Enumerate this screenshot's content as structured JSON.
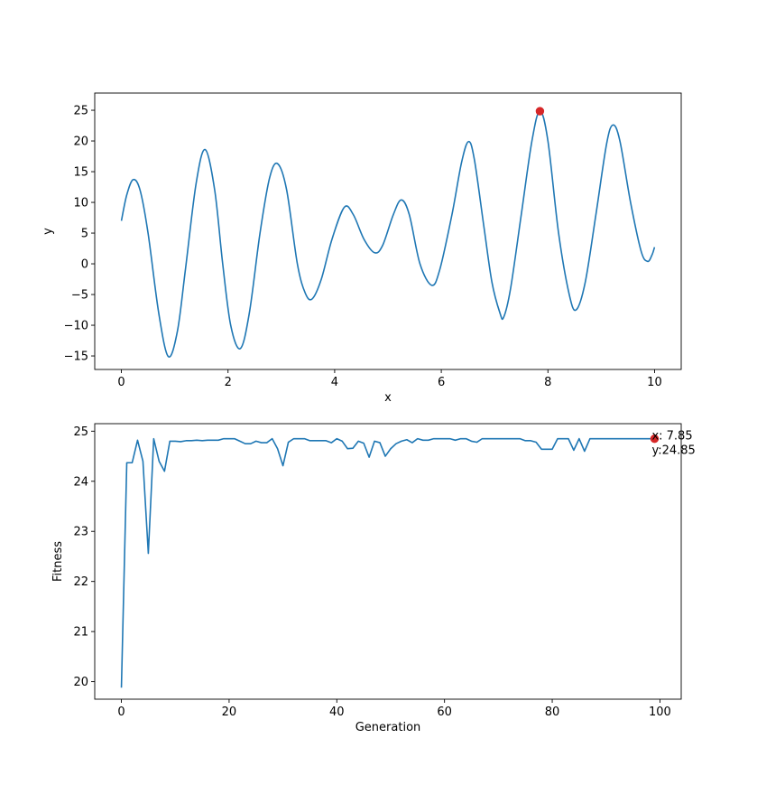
{
  "chart_data": [
    {
      "type": "line",
      "xlabel": "x",
      "ylabel": "y",
      "xlim": [
        -0.5,
        10.5
      ],
      "ylim": [
        -17.2,
        27.8
      ],
      "xticks": [
        0,
        2,
        4,
        6,
        8,
        10
      ],
      "yticks": [
        -15,
        -10,
        -5,
        0,
        5,
        10,
        15,
        20,
        25
      ],
      "tick_labels_x": [
        "0",
        "2",
        "4",
        "6",
        "8",
        "10"
      ],
      "tick_labels_y": [
        "−15",
        "−10",
        "−5",
        "0",
        "5",
        "10",
        "15",
        "20",
        "25"
      ],
      "series": [
        {
          "color": "#1f77b4",
          "points": [
            [
              0,
              7
            ],
            [
              0.1,
              11.2
            ],
            [
              0.22,
              13.7
            ],
            [
              0.35,
              12.0
            ],
            [
              0.5,
              5.0
            ],
            [
              0.7,
              -8.0
            ],
            [
              0.88,
              -15.1
            ],
            [
              1.05,
              -11.0
            ],
            [
              1.2,
              -1.0
            ],
            [
              1.4,
              13.0
            ],
            [
              1.57,
              18.6
            ],
            [
              1.75,
              12.0
            ],
            [
              1.9,
              0.0
            ],
            [
              2.05,
              -10.0
            ],
            [
              2.23,
              -13.8
            ],
            [
              2.4,
              -8.0
            ],
            [
              2.6,
              5.0
            ],
            [
              2.78,
              14.0
            ],
            [
              2.93,
              16.3
            ],
            [
              3.1,
              12.0
            ],
            [
              3.3,
              0.0
            ],
            [
              3.45,
              -4.8
            ],
            [
              3.58,
              -5.7
            ],
            [
              3.75,
              -2.5
            ],
            [
              3.95,
              4.0
            ],
            [
              4.18,
              9.2
            ],
            [
              4.35,
              8.0
            ],
            [
              4.55,
              4.0
            ],
            [
              4.75,
              1.8
            ],
            [
              4.9,
              3.0
            ],
            [
              5.1,
              8.0
            ],
            [
              5.25,
              10.4
            ],
            [
              5.4,
              8.0
            ],
            [
              5.6,
              0.0
            ],
            [
              5.82,
              -3.5
            ],
            [
              5.97,
              -1.0
            ],
            [
              6.2,
              8.0
            ],
            [
              6.38,
              16.5
            ],
            [
              6.51,
              19.9
            ],
            [
              6.62,
              17.0
            ],
            [
              6.8,
              6.0
            ],
            [
              6.95,
              -3.0
            ],
            [
              7.1,
              -8.0
            ],
            [
              7.17,
              -8.7
            ],
            [
              7.3,
              -4.0
            ],
            [
              7.5,
              8.0
            ],
            [
              7.7,
              20.0
            ],
            [
              7.85,
              24.85
            ],
            [
              8.0,
              20.0
            ],
            [
              8.2,
              5.0
            ],
            [
              8.4,
              -5.0
            ],
            [
              8.53,
              -7.5
            ],
            [
              8.7,
              -3.0
            ],
            [
              8.9,
              8.0
            ],
            [
              9.1,
              19.5
            ],
            [
              9.22,
              22.6
            ],
            [
              9.35,
              20.0
            ],
            [
              9.55,
              10.0
            ],
            [
              9.75,
              2.0
            ],
            [
              9.87,
              0.4
            ],
            [
              9.95,
              1.4
            ],
            [
              10.0,
              2.7
            ]
          ]
        }
      ],
      "highlight": {
        "x": 7.85,
        "y": 24.85,
        "color": "#d62728"
      },
      "grid": false
    },
    {
      "type": "line",
      "xlabel": "Generation",
      "ylabel": "Fitness",
      "xlim": [
        -4.95,
        103.95
      ],
      "ylim": [
        19.65,
        25.15
      ],
      "xticks": [
        0,
        20,
        40,
        60,
        80,
        100
      ],
      "yticks": [
        20,
        21,
        22,
        23,
        24,
        25
      ],
      "tick_labels_x": [
        "0",
        "20",
        "40",
        "60",
        "80",
        "100"
      ],
      "tick_labels_y": [
        "20",
        "21",
        "22",
        "23",
        "24",
        "25"
      ],
      "series": [
        {
          "color": "#1f77b4",
          "x": [
            0,
            1,
            2,
            3,
            4,
            5,
            6,
            7,
            8,
            9,
            10,
            11,
            12,
            13,
            14,
            15,
            16,
            17,
            18,
            19,
            20,
            21,
            22,
            23,
            24,
            25,
            26,
            27,
            28,
            29,
            30,
            31,
            32,
            33,
            34,
            35,
            36,
            37,
            38,
            39,
            40,
            41,
            42,
            43,
            44,
            45,
            46,
            47,
            48,
            49,
            50,
            51,
            52,
            53,
            54,
            55,
            56,
            57,
            58,
            59,
            60,
            61,
            62,
            63,
            64,
            65,
            66,
            67,
            68,
            69,
            70,
            71,
            72,
            73,
            74,
            75,
            76,
            77,
            78,
            79,
            80,
            81,
            82,
            83,
            84,
            85,
            86,
            87,
            88,
            89,
            90,
            91,
            92,
            93,
            94,
            95,
            96,
            97,
            98,
            99
          ],
          "values": [
            19.88,
            24.37,
            24.37,
            24.82,
            24.4,
            22.56,
            24.85,
            24.4,
            24.2,
            24.8,
            24.8,
            24.79,
            24.81,
            24.81,
            24.82,
            24.81,
            24.82,
            24.82,
            24.82,
            24.85,
            24.85,
            24.85,
            24.8,
            24.75,
            24.75,
            24.8,
            24.77,
            24.77,
            24.85,
            24.65,
            24.31,
            24.78,
            24.85,
            24.85,
            24.85,
            24.81,
            24.81,
            24.81,
            24.81,
            24.77,
            24.85,
            24.8,
            24.65,
            24.66,
            24.8,
            24.76,
            24.48,
            24.8,
            24.77,
            24.5,
            24.65,
            24.75,
            24.8,
            24.83,
            24.77,
            24.85,
            24.82,
            24.82,
            24.85,
            24.85,
            24.85,
            24.85,
            24.82,
            24.85,
            24.85,
            24.8,
            24.78,
            24.85,
            24.85,
            24.85,
            24.85,
            24.85,
            24.85,
            24.85,
            24.85,
            24.81,
            24.81,
            24.78,
            24.64,
            24.64,
            24.64,
            24.85,
            24.85,
            24.85,
            24.62,
            24.85,
            24.6,
            24.85,
            24.85,
            24.85,
            24.85,
            24.85,
            24.85,
            24.85,
            24.85,
            24.85,
            24.85,
            24.85,
            24.85,
            24.85
          ]
        }
      ],
      "highlight": {
        "x": 99,
        "y": 24.85,
        "color": "#d62728"
      },
      "annotation": {
        "line1": "x: 7.85",
        "line2": "y:24.85"
      },
      "grid": false
    }
  ]
}
